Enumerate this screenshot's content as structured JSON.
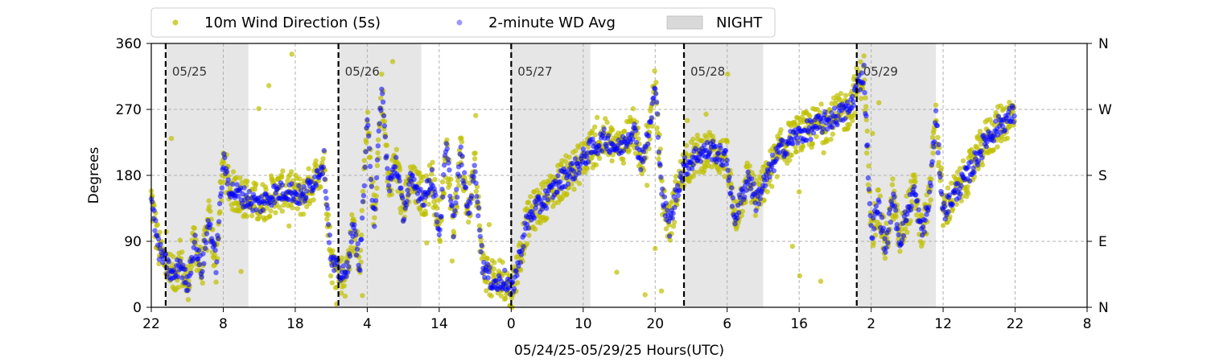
{
  "chart_data": {
    "type": "scatter",
    "title": "",
    "xlabel": "05/24/25-05/29/25  Hours(UTC)",
    "ylabel": "Degrees",
    "x_start": "2025-05-24T22:00Z",
    "x_end": "2025-05-30T08:00Z",
    "xlim": [
      "2025-05-24T22:00Z",
      "2025-05-30T08:00Z"
    ],
    "ylim": [
      0,
      360
    ],
    "grid": true,
    "legend_position": "top-center",
    "x_ticks": [
      {
        "t": "2025-05-24T22:00Z",
        "label": "22"
      },
      {
        "t": "2025-05-25T08:00Z",
        "label": "8"
      },
      {
        "t": "2025-05-25T18:00Z",
        "label": "18"
      },
      {
        "t": "2025-05-26T04:00Z",
        "label": "4"
      },
      {
        "t": "2025-05-26T14:00Z",
        "label": "14"
      },
      {
        "t": "2025-05-27T00:00Z",
        "label": "0"
      },
      {
        "t": "2025-05-27T10:00Z",
        "label": "10"
      },
      {
        "t": "2025-05-27T20:00Z",
        "label": "20"
      },
      {
        "t": "2025-05-28T06:00Z",
        "label": "6"
      },
      {
        "t": "2025-05-28T16:00Z",
        "label": "16"
      },
      {
        "t": "2025-05-29T02:00Z",
        "label": "2"
      },
      {
        "t": "2025-05-29T12:00Z",
        "label": "12"
      },
      {
        "t": "2025-05-29T22:00Z",
        "label": "22"
      },
      {
        "t": "2025-05-30T08:00Z",
        "label": "8"
      }
    ],
    "y_ticks": [
      {
        "v": 0,
        "label": "0"
      },
      {
        "v": 90,
        "label": "90"
      },
      {
        "v": 180,
        "label": "180"
      },
      {
        "v": 270,
        "label": "270"
      },
      {
        "v": 360,
        "label": "360"
      }
    ],
    "right_ticks": [
      {
        "v": 0,
        "label": "N"
      },
      {
        "v": 90,
        "label": "E"
      },
      {
        "v": 180,
        "label": "S"
      },
      {
        "v": 270,
        "label": "W"
      },
      {
        "v": 360,
        "label": "N"
      }
    ],
    "day_markers": [
      {
        "t": "2025-05-25T00:00Z",
        "label": "05/25"
      },
      {
        "t": "2025-05-26T00:00Z",
        "label": "05/26"
      },
      {
        "t": "2025-05-27T00:00Z",
        "label": "05/27"
      },
      {
        "t": "2025-05-28T00:00Z",
        "label": "05/28"
      },
      {
        "t": "2025-05-29T00:00Z",
        "label": "05/29"
      }
    ],
    "night_periods": [
      {
        "start": "2025-05-25T00:00Z",
        "end": "2025-05-25T11:30Z"
      },
      {
        "start": "2025-05-26T00:00Z",
        "end": "2025-05-26T11:30Z"
      },
      {
        "start": "2025-05-27T00:00Z",
        "end": "2025-05-27T11:00Z"
      },
      {
        "start": "2025-05-28T00:00Z",
        "end": "2025-05-28T11:00Z"
      },
      {
        "start": "2025-05-29T00:00Z",
        "end": "2025-05-29T11:00Z"
      }
    ],
    "series": [
      {
        "name": "10m Wind Direction (5s)",
        "color": "#bfbf00",
        "spread_deg": 28,
        "points": [
          [
            "2025-05-24T22:00Z",
            150
          ],
          [
            "2025-05-24T23:00Z",
            80
          ],
          [
            "2025-05-25T00:00Z",
            60
          ],
          [
            "2025-05-25T01:00Z",
            40
          ],
          [
            "2025-05-25T02:00Z",
            60
          ],
          [
            "2025-05-25T03:00Z",
            30
          ],
          [
            "2025-05-25T04:00Z",
            90
          ],
          [
            "2025-05-25T05:00Z",
            50
          ],
          [
            "2025-05-25T06:00Z",
            120
          ],
          [
            "2025-05-25T07:00Z",
            60
          ],
          [
            "2025-05-25T08:00Z",
            200
          ],
          [
            "2025-05-25T09:00Z",
            160
          ],
          [
            "2025-05-25T11:00Z",
            150
          ],
          [
            "2025-05-25T13:00Z",
            140
          ],
          [
            "2025-05-25T15:00Z",
            155
          ],
          [
            "2025-05-25T17:00Z",
            160
          ],
          [
            "2025-05-25T19:00Z",
            150
          ],
          [
            "2025-05-25T21:00Z",
            180
          ],
          [
            "2025-05-25T22:00Z",
            200
          ],
          [
            "2025-05-25T23:00Z",
            60
          ],
          [
            "2025-05-26T00:00Z",
            50
          ],
          [
            "2025-05-26T01:00Z",
            40
          ],
          [
            "2025-05-26T02:00Z",
            110
          ],
          [
            "2025-05-26T03:00Z",
            60
          ],
          [
            "2025-05-26T04:00Z",
            250
          ],
          [
            "2025-05-26T05:00Z",
            120
          ],
          [
            "2025-05-26T06:00Z",
            300
          ],
          [
            "2025-05-26T07:00Z",
            160
          ],
          [
            "2025-05-26T08:00Z",
            200
          ],
          [
            "2025-05-26T09:00Z",
            130
          ],
          [
            "2025-05-26T10:00Z",
            170
          ],
          [
            "2025-05-26T12:00Z",
            150
          ],
          [
            "2025-05-26T13:00Z",
            180
          ],
          [
            "2025-05-26T14:00Z",
            100
          ],
          [
            "2025-05-26T15:00Z",
            220
          ],
          [
            "2025-05-26T16:00Z",
            110
          ],
          [
            "2025-05-26T17:00Z",
            210
          ],
          [
            "2025-05-26T18:00Z",
            130
          ],
          [
            "2025-05-26T19:00Z",
            190
          ],
          [
            "2025-05-26T20:00Z",
            60
          ],
          [
            "2025-05-26T21:00Z",
            40
          ],
          [
            "2025-05-26T22:00Z",
            30
          ],
          [
            "2025-05-26T23:00Z",
            40
          ],
          [
            "2025-05-27T00:00Z",
            20
          ],
          [
            "2025-05-27T01:00Z",
            60
          ],
          [
            "2025-05-27T02:00Z",
            110
          ],
          [
            "2025-05-27T03:00Z",
            130
          ],
          [
            "2025-05-27T05:00Z",
            150
          ],
          [
            "2025-05-27T07:00Z",
            175
          ],
          [
            "2025-05-27T09:00Z",
            190
          ],
          [
            "2025-05-27T11:00Z",
            215
          ],
          [
            "2025-05-27T13:00Z",
            230
          ],
          [
            "2025-05-27T15:00Z",
            215
          ],
          [
            "2025-05-27T17:00Z",
            245
          ],
          [
            "2025-05-27T18:00Z",
            200
          ],
          [
            "2025-05-27T19:00Z",
            230
          ],
          [
            "2025-05-27T20:00Z",
            300
          ],
          [
            "2025-05-27T21:00Z",
            150
          ],
          [
            "2025-05-27T22:00Z",
            110
          ],
          [
            "2025-05-27T23:00Z",
            160
          ],
          [
            "2025-05-28T00:00Z",
            190
          ],
          [
            "2025-05-28T02:00Z",
            210
          ],
          [
            "2025-05-28T04:00Z",
            215
          ],
          [
            "2025-05-28T06:00Z",
            200
          ],
          [
            "2025-05-28T07:00Z",
            120
          ],
          [
            "2025-05-28T08:00Z",
            150
          ],
          [
            "2025-05-28T09:00Z",
            180
          ],
          [
            "2025-05-28T10:00Z",
            145
          ],
          [
            "2025-05-28T11:00Z",
            165
          ],
          [
            "2025-05-28T13:00Z",
            210
          ],
          [
            "2025-05-28T15:00Z",
            230
          ],
          [
            "2025-05-28T17:00Z",
            240
          ],
          [
            "2025-05-28T19:00Z",
            250
          ],
          [
            "2025-05-28T21:00Z",
            260
          ],
          [
            "2025-05-28T23:00Z",
            270
          ],
          [
            "2025-05-29T00:00Z",
            300
          ],
          [
            "2025-05-29T01:00Z",
            320
          ],
          [
            "2025-05-29T02:00Z",
            100
          ],
          [
            "2025-05-29T03:00Z",
            140
          ],
          [
            "2025-05-29T04:00Z",
            80
          ],
          [
            "2025-05-29T05:00Z",
            150
          ],
          [
            "2025-05-29T06:00Z",
            90
          ],
          [
            "2025-05-29T07:00Z",
            130
          ],
          [
            "2025-05-29T08:00Z",
            160
          ],
          [
            "2025-05-29T09:00Z",
            100
          ],
          [
            "2025-05-29T10:00Z",
            140
          ],
          [
            "2025-05-29T11:00Z",
            260
          ],
          [
            "2025-05-29T12:00Z",
            130
          ],
          [
            "2025-05-29T14:00Z",
            160
          ],
          [
            "2025-05-29T16:00Z",
            190
          ],
          [
            "2025-05-29T18:00Z",
            230
          ],
          [
            "2025-05-29T20:00Z",
            250
          ],
          [
            "2025-05-29T22:00Z",
            265
          ]
        ]
      },
      {
        "name": "2-minute WD Avg",
        "color": "#0000ff",
        "spread_deg": 14,
        "points": [
          [
            "2025-05-24T22:00Z",
            150
          ],
          [
            "2025-05-24T23:00Z",
            80
          ],
          [
            "2025-05-25T00:00Z",
            60
          ],
          [
            "2025-05-25T01:00Z",
            40
          ],
          [
            "2025-05-25T02:00Z",
            60
          ],
          [
            "2025-05-25T03:00Z",
            30
          ],
          [
            "2025-05-25T04:00Z",
            90
          ],
          [
            "2025-05-25T05:00Z",
            50
          ],
          [
            "2025-05-25T06:00Z",
            120
          ],
          [
            "2025-05-25T07:00Z",
            60
          ],
          [
            "2025-05-25T08:00Z",
            200
          ],
          [
            "2025-05-25T09:00Z",
            160
          ],
          [
            "2025-05-25T11:00Z",
            150
          ],
          [
            "2025-05-25T13:00Z",
            140
          ],
          [
            "2025-05-25T15:00Z",
            155
          ],
          [
            "2025-05-25T17:00Z",
            160
          ],
          [
            "2025-05-25T19:00Z",
            150
          ],
          [
            "2025-05-25T21:00Z",
            180
          ],
          [
            "2025-05-25T22:00Z",
            200
          ],
          [
            "2025-05-25T23:00Z",
            60
          ],
          [
            "2025-05-26T00:00Z",
            50
          ],
          [
            "2025-05-26T01:00Z",
            40
          ],
          [
            "2025-05-26T02:00Z",
            110
          ],
          [
            "2025-05-26T03:00Z",
            60
          ],
          [
            "2025-05-26T04:00Z",
            250
          ],
          [
            "2025-05-26T05:00Z",
            120
          ],
          [
            "2025-05-26T06:00Z",
            300
          ],
          [
            "2025-05-26T07:00Z",
            160
          ],
          [
            "2025-05-26T08:00Z",
            200
          ],
          [
            "2025-05-26T09:00Z",
            130
          ],
          [
            "2025-05-26T10:00Z",
            170
          ],
          [
            "2025-05-26T12:00Z",
            150
          ],
          [
            "2025-05-26T13:00Z",
            180
          ],
          [
            "2025-05-26T14:00Z",
            100
          ],
          [
            "2025-05-26T15:00Z",
            220
          ],
          [
            "2025-05-26T16:00Z",
            110
          ],
          [
            "2025-05-26T17:00Z",
            210
          ],
          [
            "2025-05-26T18:00Z",
            130
          ],
          [
            "2025-05-26T19:00Z",
            190
          ],
          [
            "2025-05-26T20:00Z",
            60
          ],
          [
            "2025-05-26T21:00Z",
            40
          ],
          [
            "2025-05-26T22:00Z",
            30
          ],
          [
            "2025-05-26T23:00Z",
            40
          ],
          [
            "2025-05-27T00:00Z",
            20
          ],
          [
            "2025-05-27T01:00Z",
            60
          ],
          [
            "2025-05-27T02:00Z",
            110
          ],
          [
            "2025-05-27T03:00Z",
            130
          ],
          [
            "2025-05-27T05:00Z",
            150
          ],
          [
            "2025-05-27T07:00Z",
            175
          ],
          [
            "2025-05-27T09:00Z",
            190
          ],
          [
            "2025-05-27T11:00Z",
            215
          ],
          [
            "2025-05-27T13:00Z",
            230
          ],
          [
            "2025-05-27T15:00Z",
            215
          ],
          [
            "2025-05-27T17:00Z",
            245
          ],
          [
            "2025-05-27T18:00Z",
            200
          ],
          [
            "2025-05-27T19:00Z",
            230
          ],
          [
            "2025-05-27T20:00Z",
            300
          ],
          [
            "2025-05-27T21:00Z",
            150
          ],
          [
            "2025-05-27T22:00Z",
            110
          ],
          [
            "2025-05-27T23:00Z",
            160
          ],
          [
            "2025-05-28T00:00Z",
            190
          ],
          [
            "2025-05-28T02:00Z",
            210
          ],
          [
            "2025-05-28T04:00Z",
            215
          ],
          [
            "2025-05-28T06:00Z",
            200
          ],
          [
            "2025-05-28T07:00Z",
            120
          ],
          [
            "2025-05-28T08:00Z",
            150
          ],
          [
            "2025-05-28T09:00Z",
            180
          ],
          [
            "2025-05-28T10:00Z",
            145
          ],
          [
            "2025-05-28T11:00Z",
            165
          ],
          [
            "2025-05-28T13:00Z",
            210
          ],
          [
            "2025-05-28T15:00Z",
            230
          ],
          [
            "2025-05-28T17:00Z",
            240
          ],
          [
            "2025-05-28T19:00Z",
            250
          ],
          [
            "2025-05-28T21:00Z",
            260
          ],
          [
            "2025-05-28T23:00Z",
            270
          ],
          [
            "2025-05-29T00:00Z",
            300
          ],
          [
            "2025-05-29T01:00Z",
            320
          ],
          [
            "2025-05-29T02:00Z",
            100
          ],
          [
            "2025-05-29T03:00Z",
            140
          ],
          [
            "2025-05-29T04:00Z",
            80
          ],
          [
            "2025-05-29T05:00Z",
            150
          ],
          [
            "2025-05-29T06:00Z",
            90
          ],
          [
            "2025-05-29T07:00Z",
            130
          ],
          [
            "2025-05-29T08:00Z",
            160
          ],
          [
            "2025-05-29T09:00Z",
            100
          ],
          [
            "2025-05-29T10:00Z",
            140
          ],
          [
            "2025-05-29T11:00Z",
            260
          ],
          [
            "2025-05-29T12:00Z",
            130
          ],
          [
            "2025-05-29T14:00Z",
            160
          ],
          [
            "2025-05-29T16:00Z",
            190
          ],
          [
            "2025-05-29T18:00Z",
            230
          ],
          [
            "2025-05-29T20:00Z",
            250
          ],
          [
            "2025-05-29T22:00Z",
            265
          ]
        ]
      }
    ],
    "legend": {
      "entries": [
        {
          "label": "10m Wind Direction (5s)",
          "color": "#bfbf00",
          "kind": "marker"
        },
        {
          "label": "2-minute WD Avg",
          "color": "#0000ff",
          "kind": "marker"
        },
        {
          "label": "NIGHT",
          "color": "#d9d9d9",
          "kind": "patch"
        }
      ]
    },
    "colors": {
      "night_fill": "#d9d9d9",
      "grid": "#b0b0b0",
      "day_marker": "#000000"
    }
  }
}
